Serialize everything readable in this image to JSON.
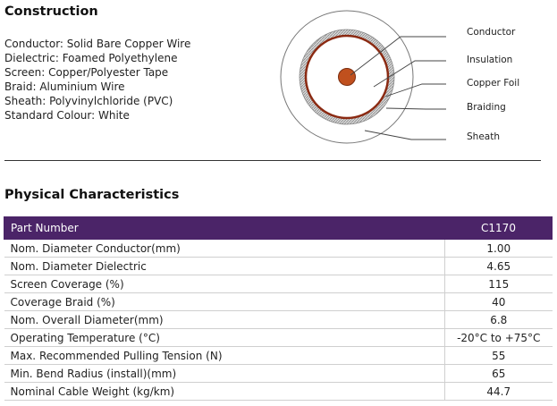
{
  "construction": {
    "title": "Construction",
    "specs": [
      "Conductor: Solid Bare Copper Wire",
      "Dielectric: Foamed Polyethylene",
      "Screen: Copper/Polyester Tape",
      "Braid: Aluminium Wire",
      "Sheath: Polyvinylchloride (PVC)",
      "Standard Colour: White"
    ]
  },
  "diagram": {
    "labels": [
      "Conductor",
      "Insulation",
      "Copper Foil",
      "Braiding",
      "Sheath"
    ],
    "colors": {
      "conductor": "#c0501e",
      "foil": "#8b2a12",
      "braid": "#9a9a9a",
      "line": "#444444"
    }
  },
  "physical": {
    "title": "Physical Characteristics",
    "header": {
      "param": "Part Number",
      "value": "C1170"
    },
    "rows": [
      {
        "param": "Nom. Diameter Conductor(mm)",
        "value": "1.00"
      },
      {
        "param": "Nom. Diameter Dielectric",
        "value": "4.65"
      },
      {
        "param": "Screen Coverage (%)",
        "value": "115"
      },
      {
        "param": "Coverage Braid (%)",
        "value": "40"
      },
      {
        "param": "Nom. Overall Diameter(mm)",
        "value": "6.8"
      },
      {
        "param": "Operating Temperature (°C)",
        "value": "-20°C to +75°C"
      },
      {
        "param": "Max. Recommended Pulling Tension (N)",
        "value": "55"
      },
      {
        "param": "Min. Bend Radius (install)(mm)",
        "value": "65"
      },
      {
        "param": "Nominal Cable Weight (kg/km)",
        "value": "44.7"
      }
    ],
    "header_color": "#4b2468"
  }
}
